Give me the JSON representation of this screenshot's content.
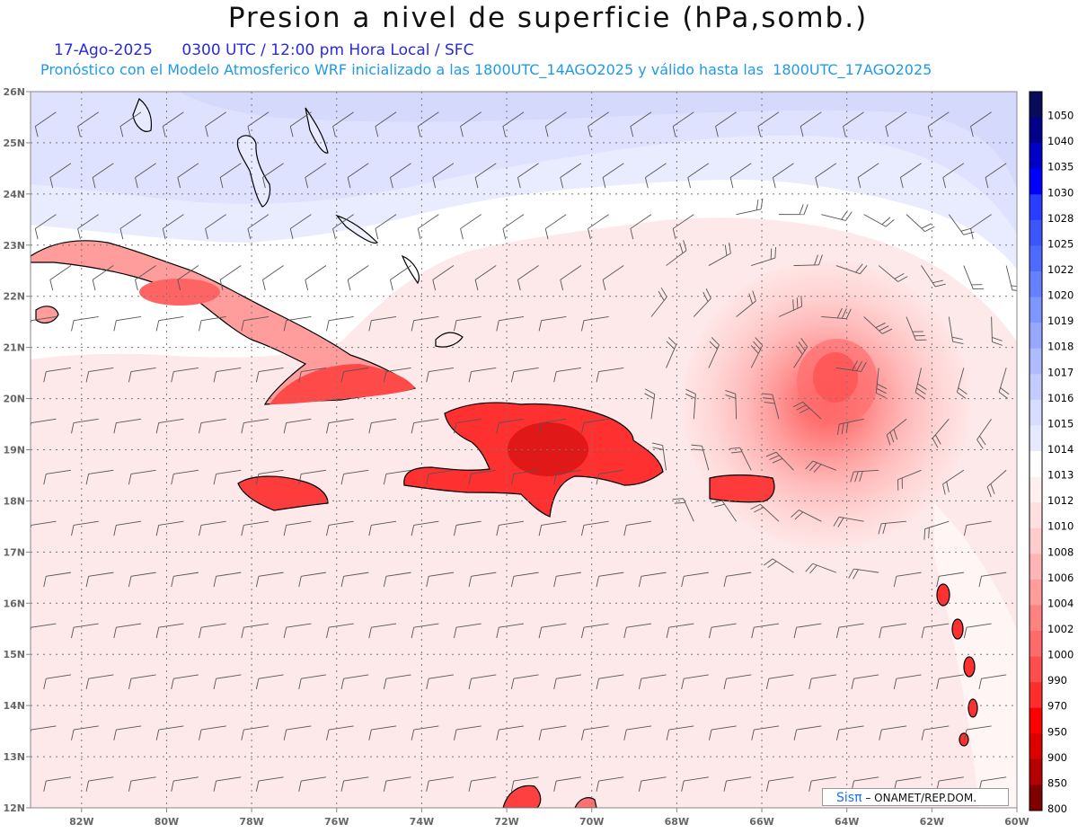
{
  "header": {
    "title": "Presion a nivel de superficie (hPa,somb.)",
    "date": "17-Ago-2025",
    "time_line": "0300 UTC / 12:00 pm Hora Local / SFC",
    "model_line": "Pronóstico con el Modelo Atmosferico WRF inicializado a las 1800UTC_14AGO2025 y válido hasta las  1800UTC_17AGO2025"
  },
  "map": {
    "lon_labels": [
      "82W",
      "80W",
      "78W",
      "76W",
      "74W",
      "72W",
      "70W",
      "68W",
      "66W",
      "64W",
      "62W",
      "60W"
    ],
    "lat_labels": [
      "26N",
      "25N",
      "24N",
      "23N",
      "22N",
      "21N",
      "20N",
      "19N",
      "18N",
      "17N",
      "16N",
      "15N",
      "14N",
      "13N",
      "12N"
    ],
    "lon_range": [
      -83.2,
      -60
    ],
    "lat_range": [
      12,
      26
    ],
    "low_center": {
      "lon": -64.2,
      "lat": 20.4
    }
  },
  "colorbar": {
    "levels": [
      "1050",
      "1040",
      "1035",
      "1030",
      "1028",
      "1025",
      "1022",
      "1020",
      "1019",
      "1018",
      "1017",
      "1016",
      "1015",
      "1014",
      "1013",
      "1012",
      "1010",
      "1008",
      "1006",
      "1004",
      "1002",
      "1000",
      "990",
      "970",
      "950",
      "900",
      "850",
      "800"
    ],
    "colors": [
      "#0a0a5a",
      "#00008b",
      "#0000c8",
      "#0000ff",
      "#2a3cff",
      "#3d55ff",
      "#4f6bff",
      "#6680ff",
      "#7f95ff",
      "#98a8ff",
      "#aebbff",
      "#c4ccff",
      "#d8ddff",
      "#e6e9ff",
      "#ffffff",
      "#fff0f0",
      "#ffe0e0",
      "#ffcccc",
      "#ffb5b5",
      "#ff9c9c",
      "#ff8282",
      "#ff6a6a",
      "#ff4e4e",
      "#ff2e2e",
      "#ff0000",
      "#dd0000",
      "#b40000",
      "#800000"
    ]
  },
  "credit": {
    "brand": "Sisπ",
    "text": "– ONAMET/REP.DOM."
  }
}
